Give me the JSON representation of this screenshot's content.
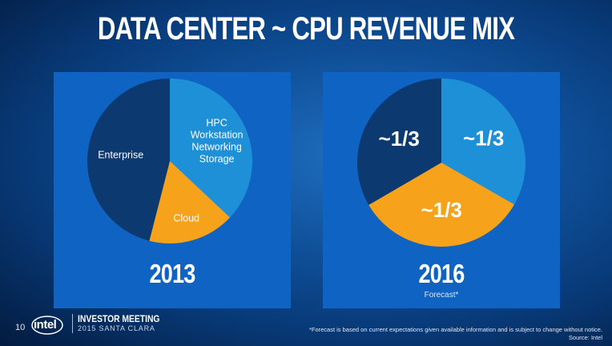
{
  "slide": {
    "title": "DATA CENTER ~ CPU REVENUE MIX",
    "slide_number": "10",
    "logo_text": "intel",
    "event_title": "INVESTOR MEETING",
    "event_subtitle": "2015 SANTA CLARA",
    "footnote_line1": "*Forecast is based on current expectations given available information and is subject to change without notice.",
    "footnote_line2": "Source: Intel"
  },
  "colors": {
    "blue_segment": "#1e90d8",
    "orange_segment": "#f7a21b",
    "navy_segment": "#0c3a70",
    "panel": "#0f63c2"
  },
  "chart_data": [
    {
      "type": "pie",
      "caption": "2013",
      "note": "",
      "slices": [
        {
          "label_lines": [
            "HPC",
            "Workstation",
            "Networking",
            "Storage"
          ],
          "value": 37,
          "color": "#1e90d8"
        },
        {
          "label_lines": [
            "Cloud"
          ],
          "value": 17,
          "color": "#f7a21b"
        },
        {
          "label_lines": [
            "Enterprise"
          ],
          "value": 46,
          "color": "#0c3a70"
        }
      ]
    },
    {
      "type": "pie",
      "caption": "2016",
      "note": "Forecast*",
      "slices": [
        {
          "label_lines": [
            "~1/3"
          ],
          "value": 33.3,
          "color": "#1e90d8"
        },
        {
          "label_lines": [
            "~1/3"
          ],
          "value": 33.3,
          "color": "#f7a21b"
        },
        {
          "label_lines": [
            "~1/3"
          ],
          "value": 33.4,
          "color": "#0c3a70"
        }
      ]
    }
  ]
}
